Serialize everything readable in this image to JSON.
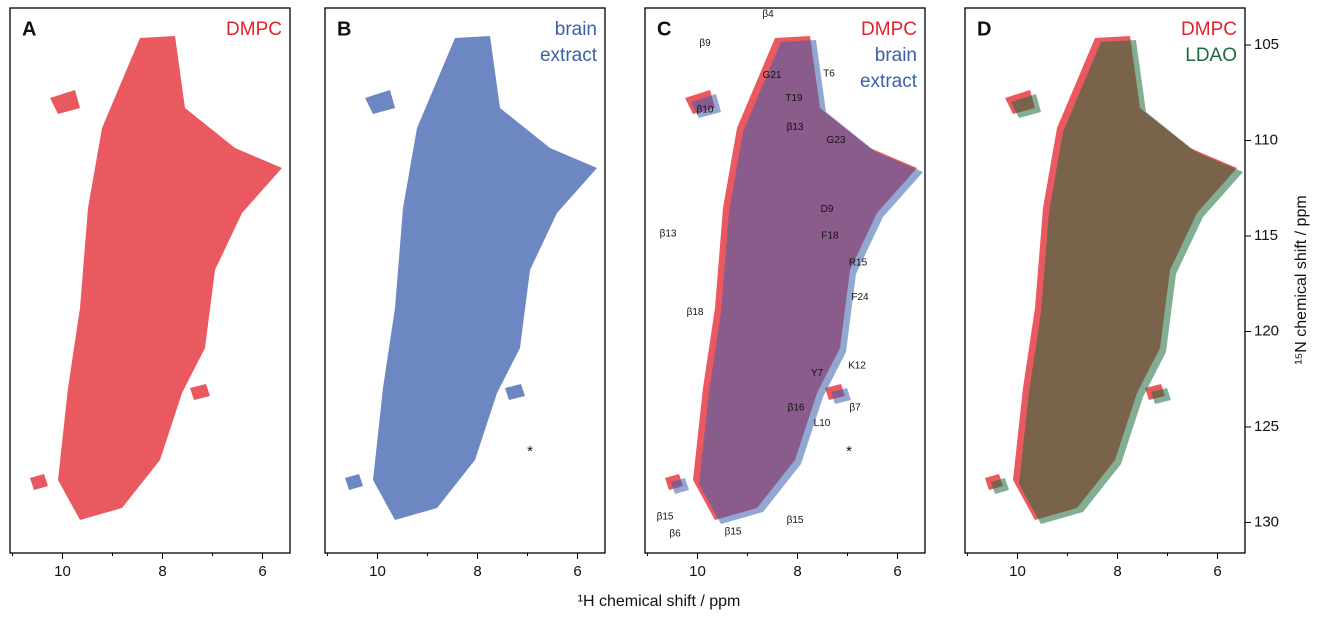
{
  "figure": {
    "x_axis_label": "¹H chemical shift / ppm",
    "y_axis_label": "¹⁵N chemical shift / ppm",
    "xlim": [
      11.05,
      5.45
    ],
    "xticks": [
      10,
      8,
      6
    ],
    "ylim": [
      103.06,
      131.6
    ],
    "yticks": [
      105,
      110,
      115,
      120,
      125,
      130
    ],
    "panels": [
      {
        "letter": "A",
        "legend": [
          {
            "lines": [
              "DMPC"
            ],
            "color": "#e3222b"
          }
        ],
        "annotations": []
      },
      {
        "letter": "B",
        "legend": [
          {
            "lines": [
              "brain",
              "extract"
            ],
            "color": "#3b5fae"
          }
        ],
        "annotations": [
          {
            "text": "*",
            "x": 6.95,
            "y": 126.3
          }
        ]
      },
      {
        "letter": "C",
        "legend": [
          {
            "lines": [
              "DMPC"
            ],
            "color": "#e3222b"
          },
          {
            "lines": [
              "brain",
              "extract"
            ],
            "color": "#3b5fae"
          }
        ],
        "annotations": [
          {
            "text": "β4",
            "x": 8.59,
            "y": 103.4
          },
          {
            "text": "T6",
            "x": 7.37,
            "y": 106.5
          },
          {
            "text": "β9",
            "x": 9.85,
            "y": 104.9
          },
          {
            "text": "G21",
            "x": 8.51,
            "y": 106.6
          },
          {
            "text": "β10",
            "x": 9.85,
            "y": 108.4
          },
          {
            "text": "T19",
            "x": 8.07,
            "y": 107.8
          },
          {
            "text": "β13",
            "x": 8.05,
            "y": 109.3
          },
          {
            "text": "G23",
            "x": 7.23,
            "y": 110.0
          },
          {
            "text": "D9",
            "x": 7.41,
            "y": 113.6
          },
          {
            "text": "β13",
            "x": 10.59,
            "y": 114.9
          },
          {
            "text": "F18",
            "x": 7.35,
            "y": 115.0
          },
          {
            "text": "R15",
            "x": 6.79,
            "y": 116.4
          },
          {
            "text": "F24",
            "x": 6.75,
            "y": 118.2
          },
          {
            "text": "β18",
            "x": 10.05,
            "y": 119.0
          },
          {
            "text": "K12",
            "x": 6.81,
            "y": 121.8
          },
          {
            "text": "Y7",
            "x": 7.61,
            "y": 122.2
          },
          {
            "text": "β16",
            "x": 8.03,
            "y": 124.0
          },
          {
            "text": "β7",
            "x": 6.85,
            "y": 124.0
          },
          {
            "text": "L10",
            "x": 7.51,
            "y": 124.8
          },
          {
            "text": "β15",
            "x": 10.65,
            "y": 129.7
          },
          {
            "text": "β6",
            "x": 10.45,
            "y": 130.6
          },
          {
            "text": "β15",
            "x": 9.29,
            "y": 130.5
          },
          {
            "text": "β15",
            "x": 8.05,
            "y": 129.9
          },
          {
            "text": "*",
            "x": 6.97,
            "y": 126.3
          }
        ]
      },
      {
        "letter": "D",
        "legend": [
          {
            "lines": [
              "DMPC"
            ],
            "color": "#e3222b"
          },
          {
            "lines": [
              "LDAO"
            ],
            "color": "#1c6b3a"
          }
        ],
        "annotations": []
      }
    ]
  }
}
